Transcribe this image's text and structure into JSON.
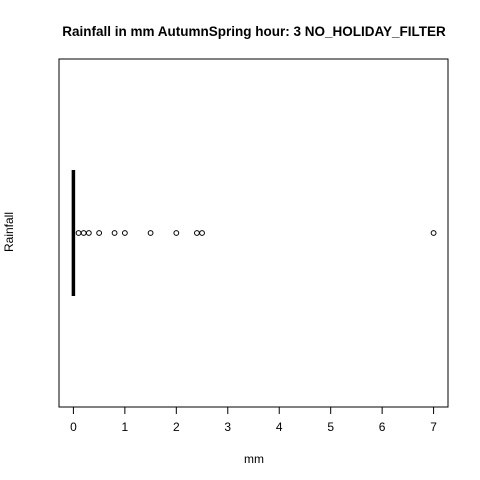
{
  "chart_data": {
    "type": "boxplot",
    "orientation": "horizontal",
    "title": "Rainfall in mm AutumnSpring hour: 3 NO_HOLIDAY_FILTER",
    "xlabel": "mm",
    "ylabel": "Rainfall",
    "xlim": [
      -0.28,
      7.28
    ],
    "xticks": [
      0,
      1,
      2,
      3,
      4,
      5,
      6,
      7
    ],
    "box": {
      "min": 0,
      "q1": 0,
      "median": 0,
      "q3": 0,
      "max": 0
    },
    "outliers": [
      0.1,
      0.2,
      0.3,
      0.5,
      0.8,
      1.0,
      1.5,
      2.0,
      2.4,
      2.5,
      7.0
    ],
    "grid": false,
    "legend": "none"
  }
}
